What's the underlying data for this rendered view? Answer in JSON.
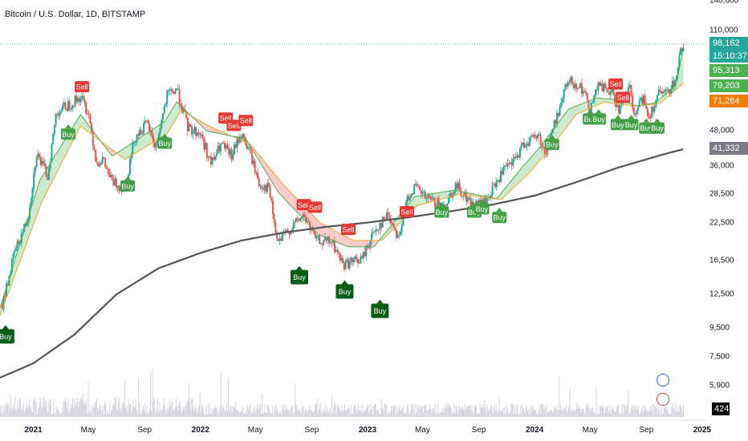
{
  "header": {
    "title": "Bitcoin / U.S. Dollar, 1D, BITSTAMP"
  },
  "colors": {
    "up": "#26a69a",
    "down": "#ef5350",
    "ema_fast": "#4caf50",
    "ema_slow": "#f5a623",
    "sma200": "#555555",
    "buy": "#43a047",
    "buy_dark": "#0a5d14",
    "sell": "#e53935"
  },
  "price_scale": {
    "ticks": [
      "140,000",
      "110,000",
      "48,000",
      "36,000",
      "28,500",
      "22,500",
      "16,500",
      "12,500",
      "9,500",
      "7,500",
      "5,900"
    ],
    "tick_values": [
      140000,
      110000,
      48000,
      36000,
      28500,
      22500,
      16500,
      12500,
      9500,
      7500,
      5900
    ],
    "last_price": "98,162",
    "countdown": "15:10:37",
    "ema_fast_value": "95,313",
    "ema_mid_value": "79,203",
    "ema_slow_value": "71,264",
    "sma200_value": "41,332",
    "volume_value": "424"
  },
  "time_scale": {
    "labels": [
      "2021",
      "May",
      "Sep",
      "2022",
      "May",
      "Sep",
      "2023",
      "May",
      "Sep",
      "2024",
      "May",
      "Sep",
      "2025"
    ],
    "years": [
      "2021",
      "2022",
      "2023",
      "2024",
      "2025"
    ]
  },
  "chart_data": {
    "type": "line",
    "title": "Bitcoin / U.S. Dollar, 1D, BITSTAMP",
    "log_scale": true,
    "ylim": [
      5000,
      150000
    ],
    "x_range": [
      "2020-10-20",
      "2025-01-10"
    ],
    "series": [
      {
        "x": [
          "2020-10-25",
          "2020-11-20",
          "2020-12-20",
          "2021-01-08",
          "2021-02-01",
          "2021-02-20",
          "2021-03-15",
          "2021-04-14",
          "2021-05-01",
          "2021-05-19",
          "2021-06-01",
          "2021-06-22",
          "2021-07-20",
          "2021-08-10",
          "2021-09-06",
          "2021-09-25",
          "2021-10-20",
          "2021-11-10",
          "2021-12-05",
          "2022-01-01",
          "2022-01-24",
          "2022-02-15",
          "2022-03-10",
          "2022-03-30",
          "2022-04-20",
          "2022-05-09",
          "2022-05-30",
          "2022-06-18",
          "2022-07-10",
          "2022-08-15",
          "2022-09-10",
          "2022-10-15",
          "2022-11-09",
          "2022-11-25",
          "2022-12-20",
          "2023-01-15",
          "2023-02-15",
          "2023-03-10",
          "2023-03-30",
          "2023-04-14",
          "2023-05-10",
          "2023-06-15",
          "2023-07-14",
          "2023-08-18",
          "2023-09-15",
          "2023-10-24",
          "2023-11-15",
          "2023-12-10",
          "2024-01-10",
          "2024-01-24",
          "2024-02-15",
          "2024-03-14",
          "2024-04-10",
          "2024-05-01",
          "2024-05-20",
          "2024-06-15",
          "2024-07-05",
          "2024-07-28",
          "2024-08-05",
          "2024-08-25",
          "2024-09-06",
          "2024-09-28",
          "2024-10-15",
          "2024-11-05",
          "2024-11-13",
          "2024-11-21"
        ],
        "y": [
          11500,
          17500,
          23500,
          40000,
          33000,
          56000,
          59000,
          63500,
          56000,
          37000,
          38000,
          31500,
          30000,
          45500,
          51000,
          42000,
          64000,
          68000,
          49000,
          47000,
          36500,
          43000,
          39000,
          47000,
          40000,
          31000,
          30000,
          19000,
          21000,
          24000,
          19500,
          19200,
          16000,
          16300,
          16700,
          21000,
          24200,
          20000,
          28000,
          30300,
          27500,
          25800,
          30800,
          26000,
          26600,
          34500,
          37000,
          43500,
          46500,
          39500,
          52000,
          73000,
          69500,
          58500,
          70000,
          66000,
          57000,
          69000,
          53000,
          64000,
          54000,
          65000,
          65000,
          74000,
          90000,
          98162
        ]
      },
      {
        "name": "",
        "x": [
          "2020-10-20",
          "2021-01-15",
          "2021-04-14",
          "2021-06-22",
          "2021-10-15",
          "2021-11-10",
          "2022-01-15",
          "2022-04-10",
          "2022-06-20",
          "2022-09-15",
          "2022-11-20",
          "2023-01-15",
          "2023-04-14",
          "2023-07-10",
          "2023-10-10",
          "2023-12-01",
          "2024-01-15",
          "2024-03-15",
          "2024-05-15",
          "2024-07-10",
          "2024-08-10",
          "2024-09-20",
          "2024-11-05",
          "2024-11-21"
        ],
        "y": [
          11200,
          32000,
          55000,
          39000,
          52000,
          61000,
          48000,
          45000,
          29000,
          20500,
          18500,
          18500,
          28000,
          29500,
          27500,
          35000,
          42500,
          57500,
          63000,
          62000,
          59000,
          60500,
          70000,
          95313
        ]
      },
      {
        "name": "",
        "x": [
          "2020-10-20",
          "2021-01-20",
          "2021-04-14",
          "2021-07-20",
          "2021-10-20",
          "2021-11-20",
          "2022-01-20",
          "2022-04-20",
          "2022-06-30",
          "2022-09-20",
          "2022-12-01",
          "2023-02-01",
          "2023-04-20",
          "2023-07-20",
          "2023-10-20",
          "2023-12-20",
          "2024-02-01",
          "2024-04-01",
          "2024-06-01",
          "2024-08-01",
          "2024-09-30",
          "2024-11-21"
        ],
        "y": [
          10500,
          27000,
          50000,
          38000,
          47000,
          57000,
          50000,
          43000,
          31000,
          22500,
          19500,
          19500,
          26000,
          28500,
          27300,
          34000,
          41000,
          55000,
          61000,
          59000,
          60000,
          71264
        ]
      },
      {
        "name": "",
        "x": [
          "2020-10-20",
          "2021-01-01",
          "2021-04-01",
          "2021-07-01",
          "2021-10-01",
          "2022-01-01",
          "2022-04-01",
          "2022-07-01",
          "2022-10-01",
          "2023-01-01",
          "2023-04-01",
          "2023-07-01",
          "2023-10-01",
          "2024-01-01",
          "2024-04-01",
          "2024-07-01",
          "2024-10-01",
          "2024-11-21"
        ],
        "y": [
          6300,
          7100,
          9000,
          12500,
          15500,
          17600,
          19500,
          20800,
          21800,
          22600,
          23600,
          24800,
          26200,
          28200,
          31500,
          35500,
          39300,
          41332
        ]
      }
    ],
    "signals": [
      {
        "type": "Buy",
        "x": "2020-11-01",
        "y": 9400
      },
      {
        "type": "Sell",
        "x": "2021-04-17",
        "y": 66000
      },
      {
        "type": "Buy",
        "x": "2021-03-18",
        "y": 49000
      },
      {
        "type": "Buy",
        "x": "2021-07-26",
        "y": 32000
      },
      {
        "type": "Buy",
        "x": "2021-10-15",
        "y": 45500
      },
      {
        "type": "Sell",
        "x": "2022-02-25",
        "y": 51000
      },
      {
        "type": "Sell",
        "x": "2022-03-15",
        "y": 48000
      },
      {
        "type": "Sell",
        "x": "2022-04-10",
        "y": 50000
      },
      {
        "type": "Sell",
        "x": "2022-08-15",
        "y": 25000
      },
      {
        "type": "Sell",
        "x": "2022-09-08",
        "y": 24500
      },
      {
        "type": "Buy",
        "x": "2022-08-05",
        "y": 15300
      },
      {
        "type": "Sell",
        "x": "2022-11-20",
        "y": 20400
      },
      {
        "type": "Buy",
        "x": "2022-11-12",
        "y": 13600
      },
      {
        "type": "Buy",
        "x": "2023-01-28",
        "y": 11600
      },
      {
        "type": "Sell",
        "x": "2023-03-28",
        "y": 23600
      },
      {
        "type": "Buy",
        "x": "2023-06-12",
        "y": 25800
      },
      {
        "type": "Buy",
        "x": "2023-08-22",
        "y": 25800
      },
      {
        "type": "Buy",
        "x": "2023-09-08",
        "y": 26500
      },
      {
        "type": "Buy",
        "x": "2023-10-16",
        "y": 24700
      },
      {
        "type": "Buy",
        "x": "2024-02-08",
        "y": 45000
      },
      {
        "type": "Buy",
        "x": "2024-05-01",
        "y": 55500
      },
      {
        "type": "Buy",
        "x": "2024-05-20",
        "y": 55500
      },
      {
        "type": "Sell",
        "x": "2024-06-26",
        "y": 67500
      },
      {
        "type": "Sell",
        "x": "2024-07-12",
        "y": 60500
      },
      {
        "type": "Buy",
        "x": "2024-07-01",
        "y": 53000
      },
      {
        "type": "Buy",
        "x": "2024-07-30",
        "y": 53000
      },
      {
        "type": "Buy",
        "x": "2024-09-01",
        "y": 51500
      },
      {
        "type": "Buy",
        "x": "2024-09-25",
        "y": 51500
      }
    ],
    "grid": false,
    "legend": "none"
  }
}
